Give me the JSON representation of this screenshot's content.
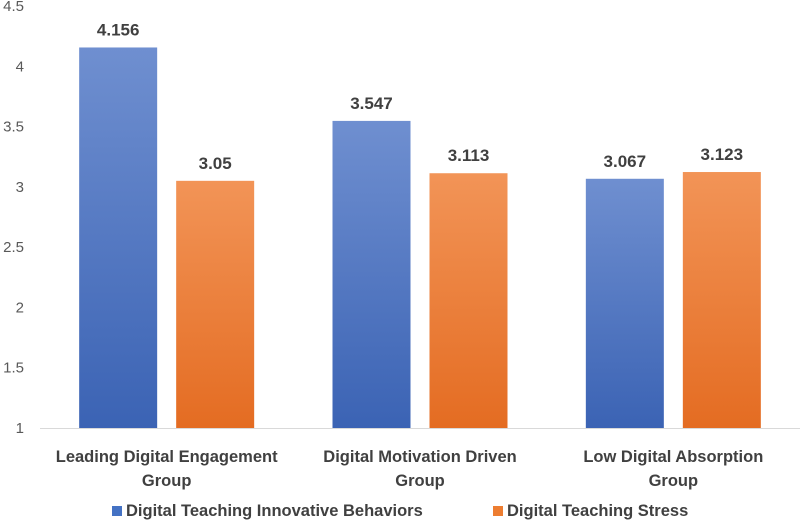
{
  "chart_data": {
    "type": "bar",
    "categories": [
      [
        "Leading Digital Engagement",
        "Group"
      ],
      [
        "Digital Motivation Driven",
        "Group"
      ],
      [
        "Low Digital Absorption",
        "Group"
      ]
    ],
    "series": [
      {
        "name": "Digital Teaching Innovative Behaviors",
        "values": [
          4.156,
          3.547,
          3.067
        ],
        "labels": [
          "4.156",
          "3.547",
          "3.067"
        ],
        "color": "#4472C4"
      },
      {
        "name": "Digital Teaching Stress",
        "values": [
          3.05,
          3.113,
          3.123
        ],
        "labels": [
          "3.05",
          "3.113",
          "3.123"
        ],
        "color": "#ED7D31"
      }
    ],
    "ylim": [
      1,
      4.5
    ],
    "yticks": [
      "1",
      "1.5",
      "2",
      "2.5",
      "3",
      "3.5",
      "4",
      "4.5"
    ],
    "grid": "none",
    "legend_position": "bottom"
  }
}
